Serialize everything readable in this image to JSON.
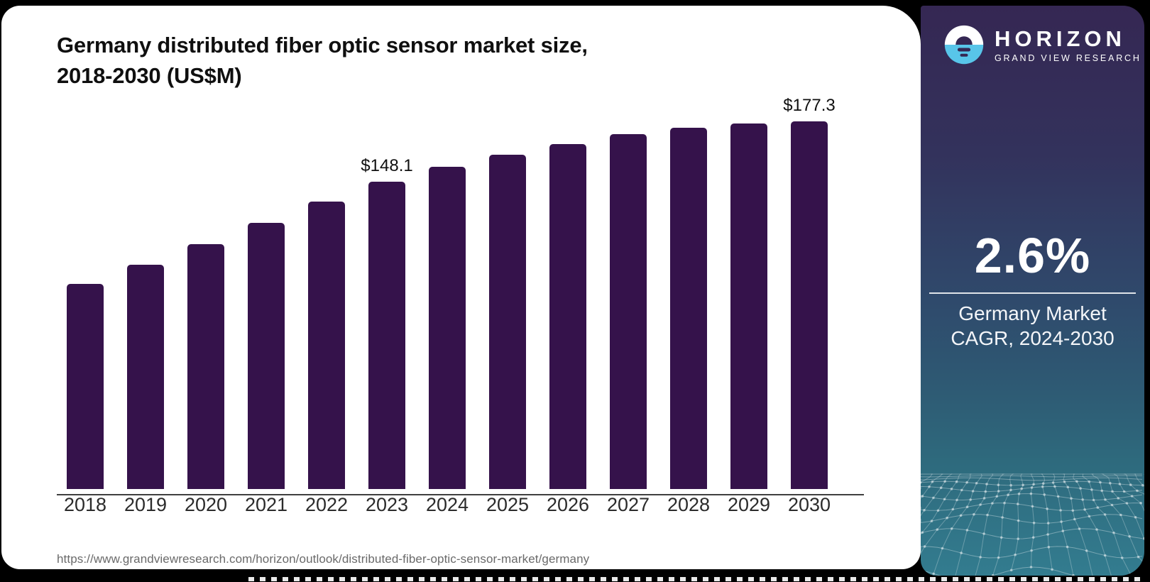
{
  "header": {
    "title_line1": "Germany distributed fiber optic sensor market size,",
    "title_line2": "2018-2030 (US$M)"
  },
  "footer": {
    "source_url": "https://www.grandviewresearch.com/horizon/outlook/distributed-fiber-optic-sensor-market/germany"
  },
  "chart_data": {
    "type": "bar",
    "title": "Germany distributed fiber optic sensor market size, 2018-2030 (US$M)",
    "categories": [
      "2018",
      "2019",
      "2020",
      "2021",
      "2022",
      "2023",
      "2024",
      "2025",
      "2026",
      "2027",
      "2028",
      "2029",
      "2030"
    ],
    "values": [
      99.0,
      108.3,
      118.2,
      128.4,
      138.6,
      148.1,
      155.4,
      161.2,
      166.4,
      171.0,
      174.3,
      176.4,
      177.3
    ],
    "labeled_points": [
      {
        "index": 5,
        "label": "$148.1"
      },
      {
        "index": 12,
        "label": "$177.3"
      }
    ],
    "xlabel": "",
    "ylabel": "",
    "ylim": [
      0,
      190
    ],
    "grid": false,
    "legend": null,
    "bar_color": "#35124B"
  },
  "sidebar": {
    "brand": {
      "name": "HORIZON",
      "subtitle": "GRAND VIEW RESEARCH"
    },
    "stat": {
      "value": "2.6%",
      "label_line1": "Germany Market",
      "label_line2": "CAGR, 2024-2030"
    },
    "colors": {
      "gradient_top": "#352753",
      "gradient_mid": "#2F5472",
      "gradient_bottom": "#337C8F",
      "logo_blue": "#58C5E9",
      "mesh_line": "#9FB9C2"
    }
  }
}
